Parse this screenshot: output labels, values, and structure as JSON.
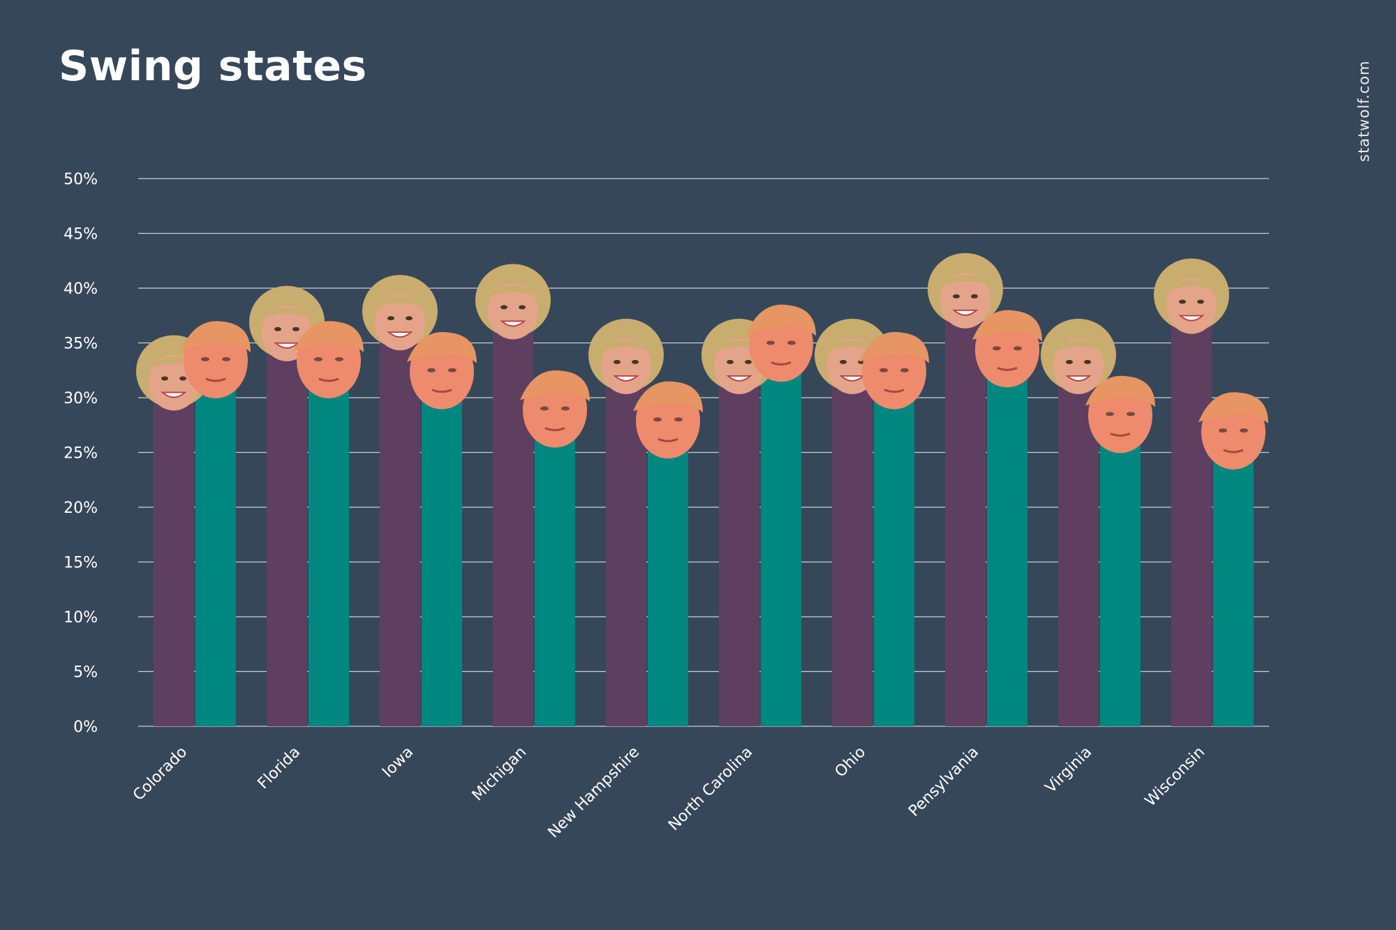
{
  "title": "Swing states",
  "credit": "statwolf.com",
  "colors": {
    "background": "#37475a",
    "clinton": "#5e3f60",
    "trump": "#00877f",
    "grid": "#c9d1da",
    "clinton_face_hair": "#c9ad6e",
    "clinton_face_skin": "#e4a48a",
    "trump_face_hair": "#e69563",
    "trump_face_skin": "#ee8b6c"
  },
  "icons": {
    "clinton_marker": "clinton-face-icon",
    "trump_marker": "trump-face-icon"
  },
  "chart_data": {
    "type": "bar",
    "categories": [
      "Colorado",
      "Florida",
      "Iowa",
      "Michigan",
      "New Hampshire",
      "North Carolina",
      "Ohio",
      "Pensylvania",
      "Virginia",
      "Wisconsin"
    ],
    "series": [
      {
        "values": [
          31.5,
          36,
          37,
          38,
          33,
          33,
          33,
          39,
          33,
          38.5
        ]
      },
      {
        "values": [
          33,
          33,
          32,
          28.5,
          27.5,
          34.5,
          32,
          34,
          28,
          26.5
        ]
      }
    ],
    "ylim": [
      0,
      50
    ],
    "yticks": [
      "0%",
      "5%",
      "10%",
      "15%",
      "20%",
      "25%",
      "30%",
      "35%",
      "40%",
      "45%",
      "50%"
    ],
    "grid": true,
    "legend": "none"
  }
}
